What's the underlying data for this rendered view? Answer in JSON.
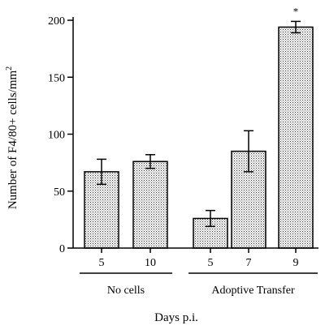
{
  "chart_data": {
    "type": "bar",
    "ylabel": "Number of F4/80+ cells/mm2",
    "ylabel_main": "Number of F4/80+ cells/mm",
    "ylabel_superscript": "2",
    "xlabel": "Days p.i.",
    "ylim": [
      0,
      200
    ],
    "yticks": [
      "0",
      "50",
      "100",
      "150",
      "200"
    ],
    "categories": [
      "5",
      "10",
      "5",
      "7",
      "9"
    ],
    "values": [
      67,
      76,
      26,
      85,
      194
    ],
    "errors": [
      11,
      6,
      7,
      18,
      5
    ],
    "annotations": [
      "",
      "",
      "",
      "",
      "*"
    ],
    "groups": [
      {
        "name": "No cells",
        "indices": [
          0,
          1
        ]
      },
      {
        "name": "Adoptive Transfer",
        "indices": [
          2,
          3,
          4
        ]
      }
    ],
    "bar_pattern": "stippled",
    "grid": false,
    "legend": "none"
  }
}
